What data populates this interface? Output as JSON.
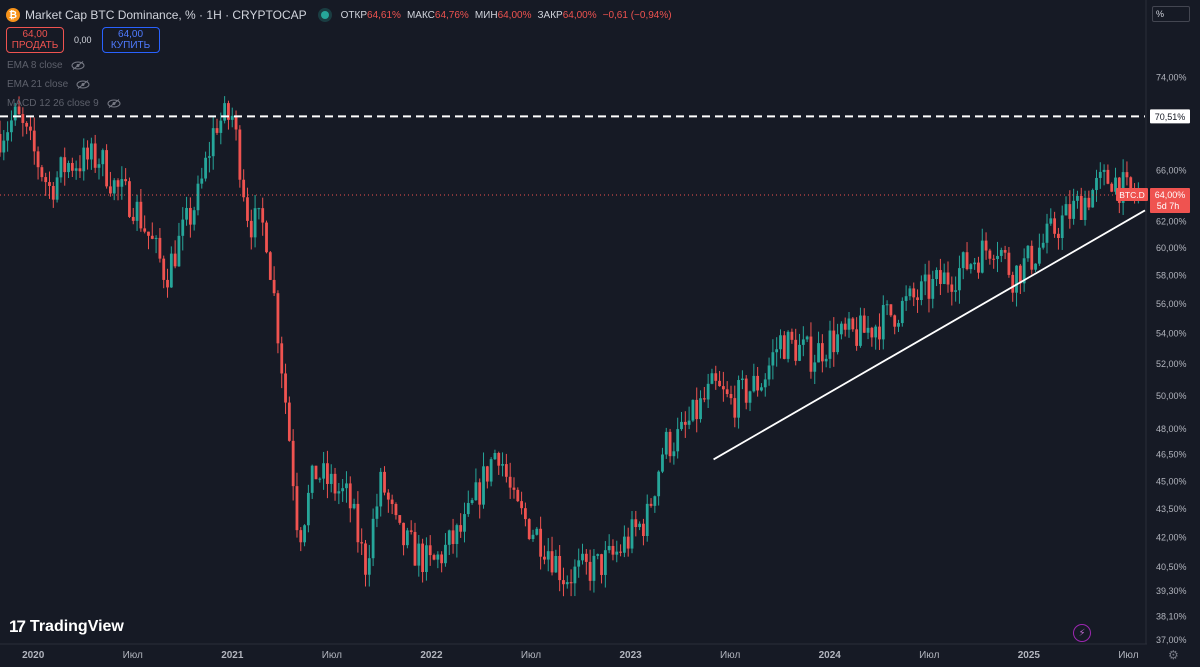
{
  "header": {
    "coin_icon": "bitcoin-icon",
    "coin_glyph": "₿",
    "title": "Market Cap BTC Dominance, % · 1H · CRYPTOCAP",
    "ohlc": [
      {
        "label": "ОТКР",
        "value": "64,61%"
      },
      {
        "label": "МАКС",
        "value": "64,76%"
      },
      {
        "label": "МИН",
        "value": "64,00%"
      },
      {
        "label": "ЗАКР",
        "value": "64,00%"
      }
    ],
    "change": "−0,61 (−0,94%)"
  },
  "trade": {
    "sell_price": "64,00",
    "sell_label": "ПРОДАТЬ",
    "spread": "0,00",
    "buy_price": "64,00",
    "buy_label": "КУПИТЬ"
  },
  "indicators": [
    {
      "label": "EMA 8 close",
      "icon": "eye-off-icon"
    },
    {
      "label": "EMA 21 close",
      "icon": "eye-off-icon"
    },
    {
      "label": "MACD 12 26 close 9",
      "icon": "eye-off-icon"
    }
  ],
  "scale_mode": "%",
  "branding": {
    "name": "TradingView",
    "icon": "tradingview-logo"
  },
  "colors": {
    "up": "#26a69a",
    "down": "#ef5350",
    "background": "#161a25",
    "text": "#b2b5be",
    "trendline": "#ffffff"
  },
  "chart_data": {
    "type": "candlestick",
    "symbol": "BTC.D",
    "y_axis": {
      "scale": "log",
      "range": [
        36.8,
        77.0
      ],
      "tick_labels": [
        "74,00%",
        "66,00%",
        "62,00%",
        "60,00%",
        "58,00%",
        "56,00%",
        "54,00%",
        "52,00%",
        "50,00%",
        "48,00%",
        "46,50%",
        "45,00%",
        "43,50%",
        "42,00%",
        "40,50%",
        "39,30%",
        "38,10%",
        "37,00%"
      ],
      "ticks": [
        74,
        66,
        62,
        60,
        58,
        56,
        54,
        52,
        50,
        48,
        46.5,
        45,
        43.5,
        42,
        40.5,
        39.3,
        38.1,
        37
      ]
    },
    "x_axis": {
      "range": [
        "2019-11",
        "2025-08"
      ],
      "tick_labels": [
        "2020",
        "Июл",
        "2021",
        "Июл",
        "2022",
        "Июл",
        "2023",
        "Июл",
        "2024",
        "Июл",
        "2025",
        "Июл"
      ],
      "ticks": [
        "2020-01",
        "2020-07",
        "2021-01",
        "2021-07",
        "2022-01",
        "2022-07",
        "2023-01",
        "2023-07",
        "2024-01",
        "2024-07",
        "2025-01",
        "2025-07"
      ]
    },
    "price_path": [
      [
        "2019-11",
        69.0
      ],
      [
        "2019-12",
        70.5
      ],
      [
        "2020-02",
        64.5
      ],
      [
        "2020-03",
        66.5
      ],
      [
        "2020-05",
        67.0
      ],
      [
        "2020-06",
        64.5
      ],
      [
        "2020-07",
        63.5
      ],
      [
        "2020-09",
        58.0
      ],
      [
        "2020-11",
        64.0
      ],
      [
        "2020-12",
        70.0
      ],
      [
        "2021-01",
        70.5
      ],
      [
        "2021-02",
        62.0
      ],
      [
        "2021-03",
        61.5
      ],
      [
        "2021-05",
        42.0
      ],
      [
        "2021-06",
        45.5
      ],
      [
        "2021-08",
        44.0
      ],
      [
        "2021-09",
        40.5
      ],
      [
        "2021-10",
        45.0
      ],
      [
        "2021-11",
        42.0
      ],
      [
        "2022-01",
        40.5
      ],
      [
        "2022-03",
        42.5
      ],
      [
        "2022-05",
        47.0
      ],
      [
        "2022-06",
        43.5
      ],
      [
        "2022-08",
        41.5
      ],
      [
        "2022-09",
        40.0
      ],
      [
        "2022-11",
        40.5
      ],
      [
        "2022-12",
        41.0
      ],
      [
        "2023-02",
        43.0
      ],
      [
        "2023-03",
        47.0
      ],
      [
        "2023-04",
        47.5
      ],
      [
        "2023-06",
        50.5
      ],
      [
        "2023-07",
        49.5
      ],
      [
        "2023-09",
        51.0
      ],
      [
        "2023-10",
        53.5
      ],
      [
        "2023-12",
        52.5
      ],
      [
        "2024-01",
        53.5
      ],
      [
        "2024-03",
        54.0
      ],
      [
        "2024-05",
        55.5
      ],
      [
        "2024-07",
        57.0
      ],
      [
        "2024-09",
        58.5
      ],
      [
        "2024-11",
        60.5
      ],
      [
        "2024-12",
        58.0
      ],
      [
        "2025-01",
        59.0
      ],
      [
        "2025-03",
        62.0
      ],
      [
        "2025-05",
        64.5
      ],
      [
        "2025-06",
        65.5
      ],
      [
        "2025-07",
        64.0
      ]
    ],
    "last_price": {
      "value": 64.0,
      "label": "64,00%",
      "symbol_label": "BTC.D",
      "countdown": "5d 7h"
    },
    "horizontal_line": {
      "value": 70.51,
      "label": "70,51%",
      "style": "dashed"
    },
    "trendline": {
      "from": [
        "2023-06",
        46.2
      ],
      "to": [
        "2025-08",
        62.8
      ]
    },
    "grid": false,
    "legend": "none"
  }
}
